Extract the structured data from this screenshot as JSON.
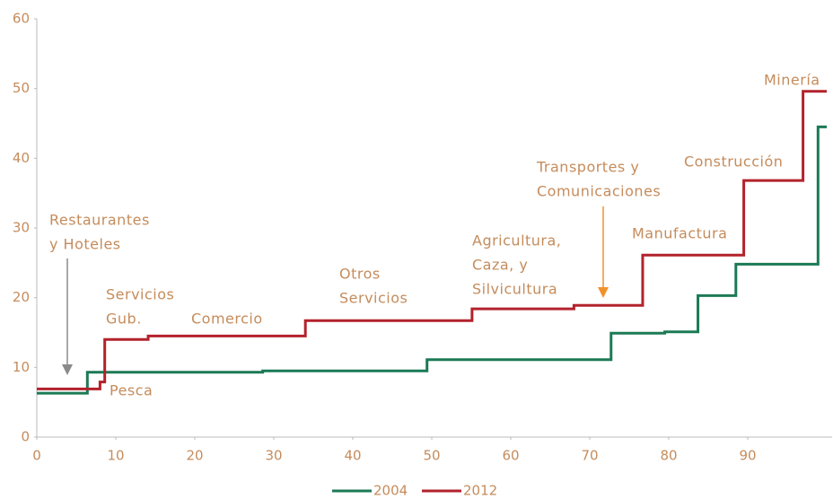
{
  "chart_data": {
    "type": "step",
    "series": [
      {
        "name": "2004",
        "color": "#1b7a55",
        "x": [
          0,
          6.4,
          28.6,
          49.4,
          72.7,
          79.5,
          83.7,
          88.5,
          98.9,
          100
        ],
        "values": [
          6.3,
          9.3,
          9.5,
          11.1,
          14.9,
          15.1,
          20.3,
          24.8,
          44.5,
          44.5
        ]
      },
      {
        "name": "2012",
        "color": "#b3222c",
        "x": [
          0,
          8,
          8.6,
          14.1,
          34,
          55.1,
          68,
          76.7,
          89.5,
          97,
          100
        ],
        "values": [
          6.9,
          7.9,
          14,
          14.5,
          16.7,
          18.4,
          18.9,
          26.1,
          36.8,
          49.6,
          49.6
        ]
      }
    ],
    "xlim": [
      0,
      100
    ],
    "ylim": [
      0,
      60
    ],
    "xticks": [
      0,
      10,
      20,
      30,
      40,
      50,
      60,
      70,
      80,
      90
    ],
    "yticks": [
      0,
      10,
      20,
      30,
      40,
      50,
      60
    ],
    "annotations": [
      {
        "lines": [
          "Restaurantes",
          "y Hoteles"
        ]
      },
      {
        "lines": [
          "Servicios",
          "Gub."
        ]
      },
      {
        "lines": [
          "Comercio"
        ]
      },
      {
        "lines": [
          "Otros",
          "Servicios"
        ]
      },
      {
        "lines": [
          "Agricultura,",
          "Caza, y",
          "Silvicultura"
        ]
      },
      {
        "lines": [
          "Transportes y",
          "Comunicaciones"
        ]
      },
      {
        "lines": [
          "Construcción"
        ]
      },
      {
        "lines": [
          "Manufactura"
        ]
      },
      {
        "lines": [
          "Minería"
        ]
      },
      {
        "lines": [
          "Pesca"
        ]
      }
    ]
  }
}
